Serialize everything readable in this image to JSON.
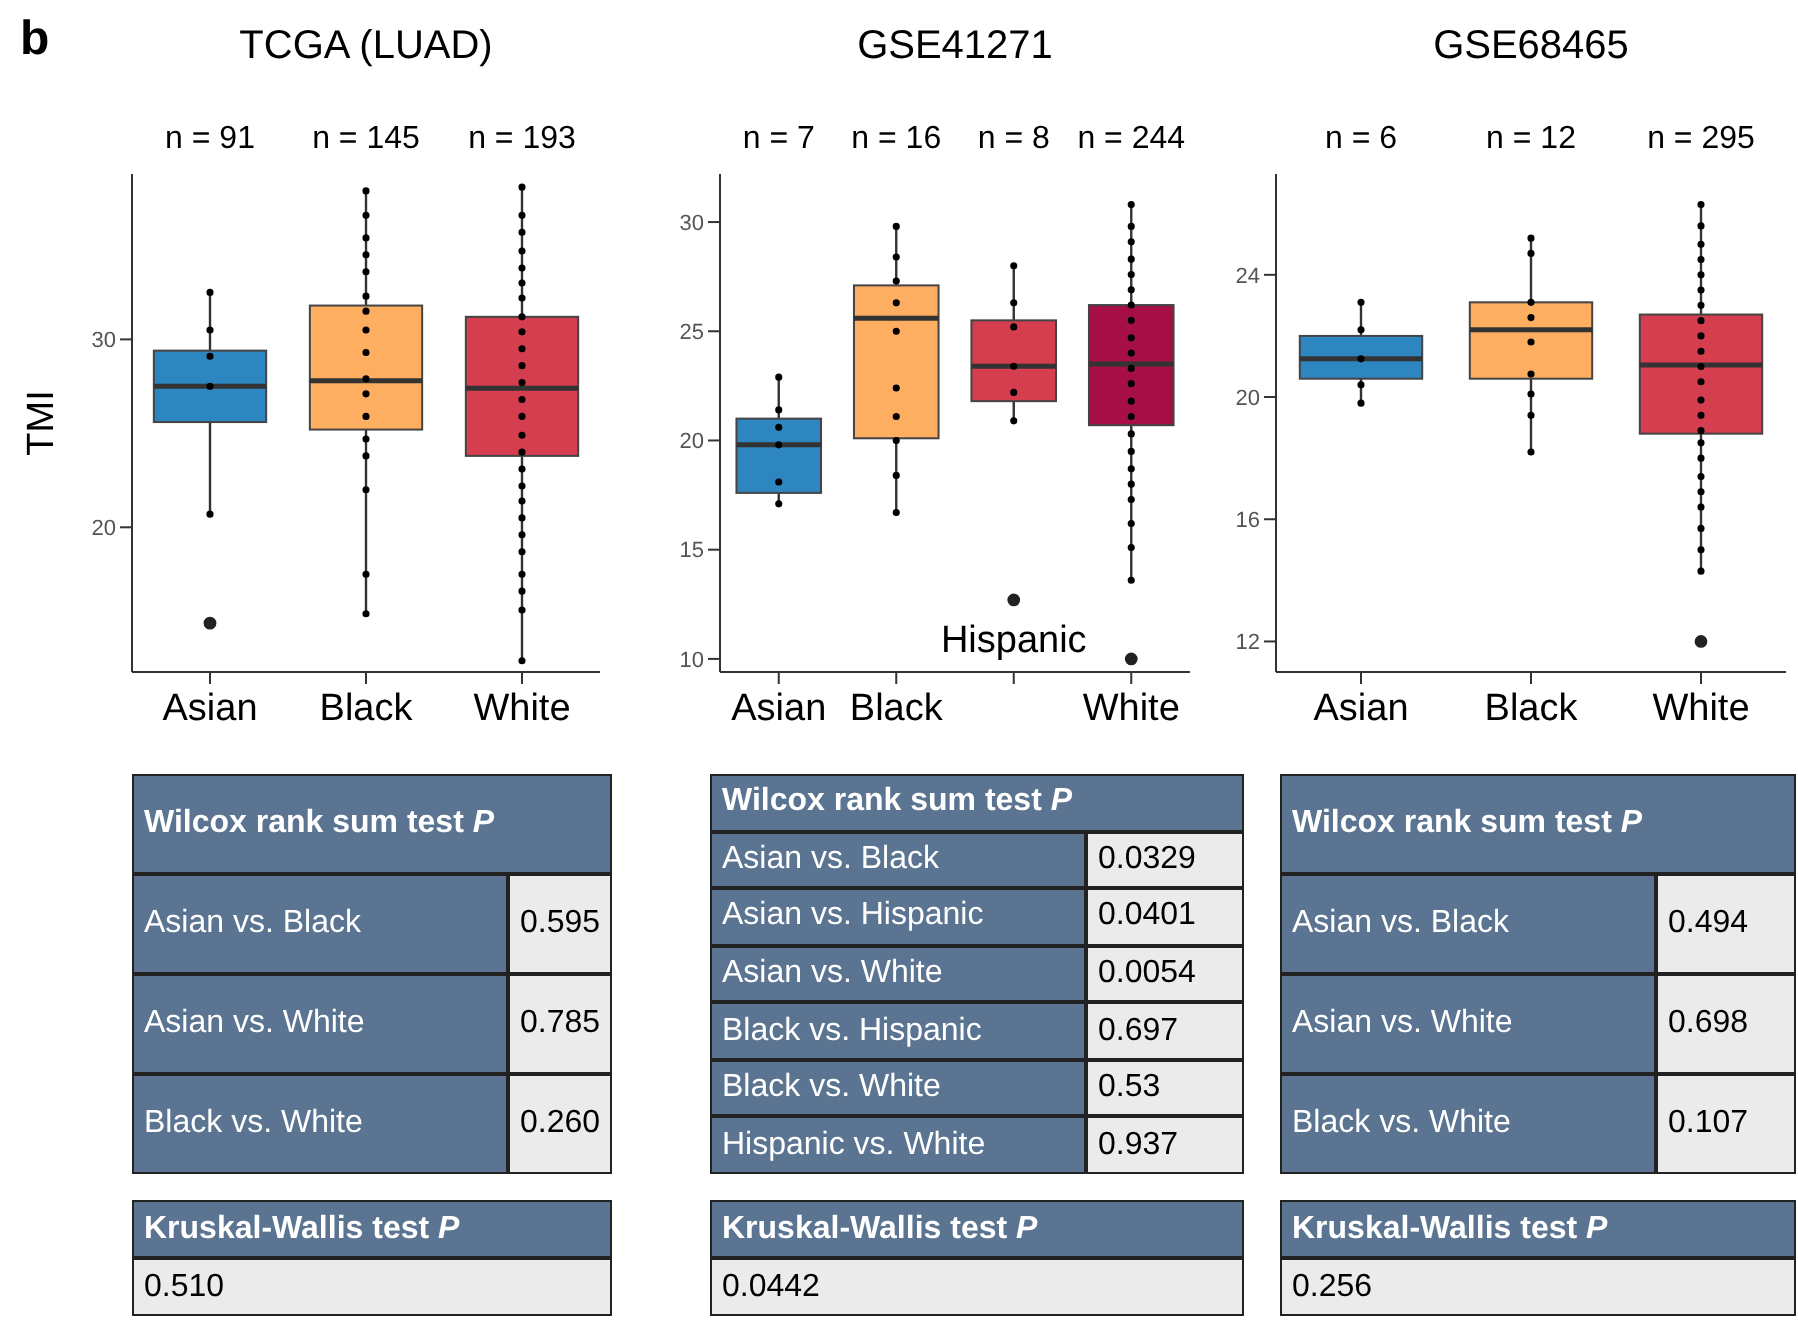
{
  "chart_data": [
    {
      "type": "box",
      "title": "TCGA (LUAD)",
      "ylabel": "TMI",
      "categories": [
        "Asian",
        "Black",
        "White"
      ],
      "colors": [
        "#2e86c1",
        "#fdae61",
        "#d53e4f"
      ],
      "boxes": [
        {
          "low": 20.7,
          "q1": 25.6,
          "median": 27.5,
          "q3": 29.4,
          "high": 32.5,
          "outliers": [
            14.9
          ]
        },
        {
          "low": 15.4,
          "q1": 25.2,
          "median": 27.8,
          "q3": 31.8,
          "high": 37.9
        },
        {
          "low": 12.9,
          "q1": 23.8,
          "median": 27.4,
          "q3": 31.2,
          "high": 38.1
        }
      ],
      "series": [
        {
          "type": "scatter",
          "color": "#000000",
          "x": [
            "Asian",
            "Asian",
            "Asian",
            "Asian",
            "Asian",
            "Black",
            "Black",
            "Black",
            "Black",
            "Black",
            "Black",
            "Black",
            "Black",
            "Black",
            "Black",
            "Black",
            "Black",
            "Black",
            "Black",
            "Black",
            "Black",
            "Black",
            "White",
            "White",
            "White",
            "White",
            "White",
            "White",
            "White",
            "White",
            "White",
            "White",
            "White",
            "White",
            "White",
            "White",
            "White",
            "White",
            "White",
            "White",
            "White",
            "White",
            "White",
            "White",
            "White",
            "White",
            "White",
            "White"
          ],
          "values": [
            32.5,
            30.5,
            29.1,
            27.5,
            20.7,
            37.9,
            36.6,
            35.4,
            34.5,
            33.6,
            32.3,
            31.5,
            30.5,
            29.3,
            27.9,
            27.1,
            25.9,
            24.7,
            23.8,
            22.0,
            17.5,
            15.4,
            38.1,
            36.6,
            35.7,
            34.7,
            33.8,
            33.0,
            32.2,
            31.2,
            30.4,
            29.5,
            28.6,
            27.7,
            26.8,
            25.9,
            24.9,
            24.0,
            23.1,
            22.2,
            21.4,
            20.5,
            19.6,
            18.7,
            17.5,
            16.6,
            15.6,
            12.9
          ]
        }
      ],
      "ylim": [
        12.3,
        38.8
      ],
      "yticks": [
        20,
        30
      ],
      "annotations": [
        "n = 91",
        "n = 145",
        "n = 193",
        "b"
      ]
    },
    {
      "type": "box",
      "title": "GSE41271",
      "categories": [
        "Asian",
        "Black",
        "Hispanic",
        "White"
      ],
      "colors": [
        "#2e86c1",
        "#fdae61",
        "#d53e4f",
        "#a50f45"
      ],
      "boxes": [
        {
          "low": 17.1,
          "q1": 17.6,
          "median": 19.8,
          "q3": 21.0,
          "high": 22.9
        },
        {
          "low": 16.7,
          "q1": 20.1,
          "median": 25.6,
          "q3": 27.1,
          "high": 29.8
        },
        {
          "low": 20.9,
          "q1": 21.8,
          "median": 23.4,
          "q3": 25.5,
          "high": 28.0,
          "outliers": [
            12.7
          ]
        },
        {
          "low": 13.6,
          "q1": 20.7,
          "median": 23.5,
          "q3": 26.2,
          "high": 30.8,
          "outliers": [
            10.0
          ]
        }
      ],
      "series": [
        {
          "type": "scatter",
          "color": "#000000",
          "x": [
            "Asian",
            "Asian",
            "Asian",
            "Asian",
            "Asian",
            "Asian",
            "Black",
            "Black",
            "Black",
            "Black",
            "Black",
            "Black",
            "Black",
            "Black",
            "Black",
            "Black",
            "Hispanic",
            "Hispanic",
            "Hispanic",
            "Hispanic",
            "Hispanic",
            "Hispanic",
            "White",
            "White",
            "White",
            "White",
            "White",
            "White",
            "White",
            "White",
            "White",
            "White",
            "White",
            "White",
            "White",
            "White",
            "White",
            "White",
            "White",
            "White",
            "White",
            "White",
            "White",
            "White"
          ],
          "values": [
            22.9,
            21.4,
            20.6,
            19.8,
            18.1,
            17.1,
            29.8,
            28.4,
            27.3,
            26.3,
            25.0,
            22.4,
            21.1,
            20.0,
            18.4,
            16.7,
            28.0,
            26.3,
            25.2,
            23.4,
            22.2,
            20.9,
            30.8,
            29.8,
            29.1,
            28.3,
            27.6,
            26.9,
            26.2,
            25.5,
            24.7,
            24.0,
            23.3,
            22.6,
            21.8,
            21.1,
            20.3,
            19.5,
            18.7,
            18.0,
            17.3,
            16.2,
            15.1,
            13.6
          ]
        }
      ],
      "ylim": [
        9.4,
        32.2
      ],
      "yticks": [
        10,
        15,
        20,
        25,
        30
      ],
      "annotations": [
        "n = 7",
        "n = 16",
        "n = 8",
        "n = 244"
      ]
    },
    {
      "type": "box",
      "title": "GSE68465",
      "categories": [
        "Asian",
        "Black",
        "White"
      ],
      "colors": [
        "#2e86c1",
        "#fdae61",
        "#d53e4f"
      ],
      "boxes": [
        {
          "low": 19.8,
          "q1": 20.6,
          "median": 21.25,
          "q3": 22.0,
          "high": 23.1
        },
        {
          "low": 18.2,
          "q1": 20.6,
          "median": 22.2,
          "q3": 23.1,
          "high": 25.2
        },
        {
          "low": 14.3,
          "q1": 18.8,
          "median": 21.05,
          "q3": 22.7,
          "high": 26.3,
          "outliers": [
            12.0
          ]
        }
      ],
      "series": [
        {
          "type": "scatter",
          "color": "#000000",
          "x": [
            "Asian",
            "Asian",
            "Asian",
            "Asian",
            "Asian",
            "Black",
            "Black",
            "Black",
            "Black",
            "Black",
            "Black",
            "Black",
            "Black",
            "Black",
            "White",
            "White",
            "White",
            "White",
            "White",
            "White",
            "White",
            "White",
            "White",
            "White",
            "White",
            "White",
            "White",
            "White",
            "White",
            "White",
            "White",
            "White",
            "White",
            "White",
            "White",
            "White",
            "White"
          ],
          "values": [
            23.1,
            22.2,
            21.25,
            20.4,
            19.8,
            25.2,
            24.7,
            23.1,
            22.6,
            21.8,
            20.75,
            20.1,
            19.4,
            18.2,
            26.3,
            25.6,
            25.0,
            24.5,
            24.0,
            23.5,
            23.0,
            22.5,
            22.0,
            21.5,
            21.0,
            20.5,
            19.9,
            19.4,
            18.9,
            18.5,
            18.0,
            17.4,
            16.9,
            16.4,
            15.7,
            15.0,
            14.3
          ]
        }
      ],
      "ylim": [
        11,
        27.3
      ],
      "yticks": [
        12,
        16,
        20,
        24
      ],
      "annotations": [
        "n = 6",
        "n = 12",
        "n = 295"
      ]
    },
    {
      "type": "other",
      "title": "Wilcox rank sum test P",
      "categories": [
        "Asian vs. Black",
        "Asian vs. White",
        "Black vs. White"
      ],
      "value_labels": [
        "0.595",
        "0.785",
        "0.260"
      ]
    },
    {
      "type": "other",
      "title": "Wilcox rank sum test P",
      "categories": [
        "Asian vs. Black",
        "Asian vs. Hispanic",
        "Asian vs. White",
        "Black vs. Hispanic",
        "Black vs. White",
        "Hispanic vs. White"
      ],
      "value_labels": [
        "0.0329",
        "0.0401",
        "0.0054",
        "0.697",
        "0.53",
        "0.937"
      ]
    },
    {
      "type": "other",
      "title": "Wilcox rank sum test P",
      "categories": [
        "Asian vs. Black",
        "Asian vs. White",
        "Black vs. White"
      ],
      "value_labels": [
        "0.494",
        "0.698",
        "0.107"
      ]
    },
    {
      "type": "other",
      "title": "Kruskal-Wallis test P",
      "annotations": [
        "0.510"
      ]
    },
    {
      "type": "other",
      "title": "Kruskal-Wallis test P",
      "annotations": [
        "0.0442"
      ]
    },
    {
      "type": "other",
      "title": "Kruskal-Wallis test P",
      "annotations": [
        "0.256"
      ]
    }
  ]
}
